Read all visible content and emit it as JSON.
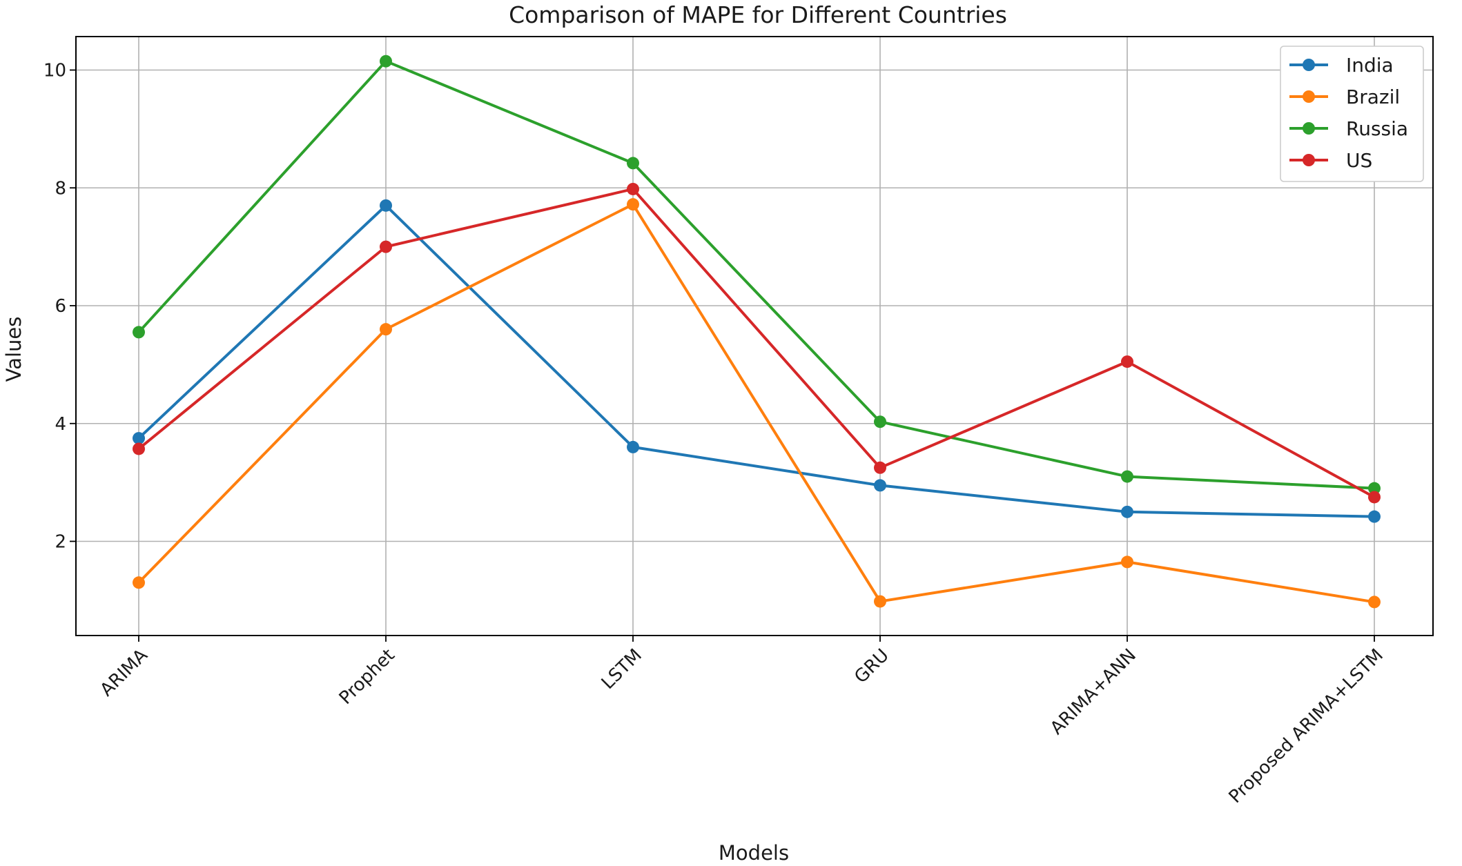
{
  "chart_data": {
    "type": "line",
    "title": "Comparison of MAPE for Different Countries",
    "xlabel": "Models",
    "ylabel": "Values",
    "categories": [
      "ARIMA",
      "Prophet",
      "LSTM",
      "GRU",
      "ARIMA+ANN",
      "Proposed ARIMA+LSTM"
    ],
    "yticks": [
      2,
      4,
      6,
      8,
      10
    ],
    "ylim": [
      0.5,
      10.7
    ],
    "grid": true,
    "legend_position": "top-right",
    "series": [
      {
        "name": "India",
        "color": "#1f77b4",
        "values": [
          3.75,
          7.7,
          3.6,
          2.95,
          2.5,
          2.42
        ]
      },
      {
        "name": "Brazil",
        "color": "#ff7f0e",
        "values": [
          1.3,
          5.6,
          7.72,
          0.98,
          1.65,
          0.97
        ]
      },
      {
        "name": "Russia",
        "color": "#2ca02c",
        "values": [
          5.55,
          10.15,
          8.42,
          4.03,
          3.1,
          2.9
        ]
      },
      {
        "name": "US",
        "color": "#d62728",
        "values": [
          3.57,
          7.0,
          7.98,
          3.25,
          5.05,
          2.75
        ]
      }
    ]
  }
}
